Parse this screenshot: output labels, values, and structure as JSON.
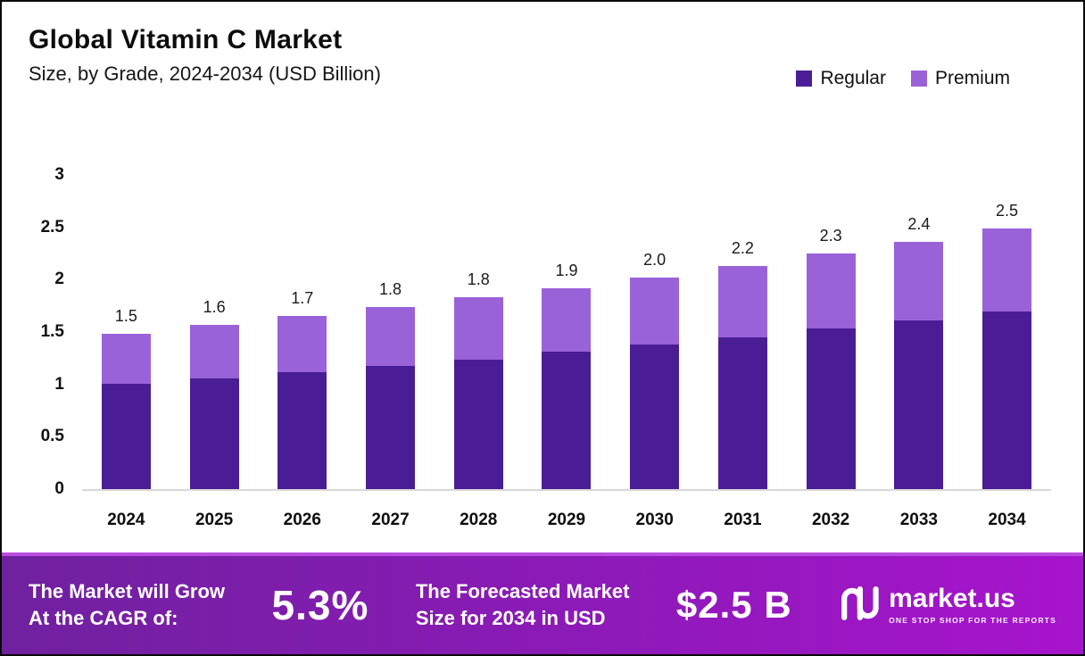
{
  "header": {
    "title": "Global Vitamin C Market",
    "subtitle": "Size, by Grade, 2024-2034 (USD Billion)"
  },
  "legend": [
    {
      "label": "Regular"
    },
    {
      "label": "Premium"
    }
  ],
  "chart_data": {
    "type": "bar",
    "stacked": true,
    "title": "Global Vitamin C Market",
    "subtitle": "Size, by Grade, 2024-2034 (USD Billion)",
    "unit": "USD Billion",
    "categories": [
      "2024",
      "2025",
      "2026",
      "2027",
      "2028",
      "2029",
      "2030",
      "2031",
      "2032",
      "2033",
      "2034"
    ],
    "series": [
      {
        "name": "Regular",
        "color": "#4a1d96",
        "values": [
          1.01,
          1.06,
          1.12,
          1.18,
          1.24,
          1.31,
          1.38,
          1.45,
          1.53,
          1.61,
          1.7
        ]
      },
      {
        "name": "Premium",
        "color": "#9a62d8",
        "values": [
          0.47,
          0.51,
          0.53,
          0.56,
          0.59,
          0.61,
          0.64,
          0.68,
          0.72,
          0.75,
          0.79
        ]
      }
    ],
    "total_labels": [
      "1.5",
      "1.6",
      "1.7",
      "1.8",
      "1.8",
      "1.9",
      "2.0",
      "2.2",
      "2.3",
      "2.4",
      "2.5"
    ],
    "ylim": [
      0,
      3
    ],
    "yticks": [
      "3",
      "2.5",
      "2",
      "1.5",
      "1",
      "0.5",
      "0"
    ],
    "grid": false,
    "legend_position": "top-right"
  },
  "banner": {
    "cagr_label_line1": "The Market will Grow",
    "cagr_label_line2": "At the CAGR of:",
    "cagr_value": "5.3%",
    "forecast_label_line1": "The Forecasted Market",
    "forecast_label_line2": "Size for 2034 in USD",
    "forecast_value": "$2.5 B",
    "brand": {
      "name": "market.us",
      "tagline": "ONE STOP SHOP FOR THE REPORTS"
    },
    "colors": {
      "gradient_start": "#6f219f",
      "gradient_mid": "#8d1ab8",
      "gradient_end": "#a714cd"
    }
  }
}
